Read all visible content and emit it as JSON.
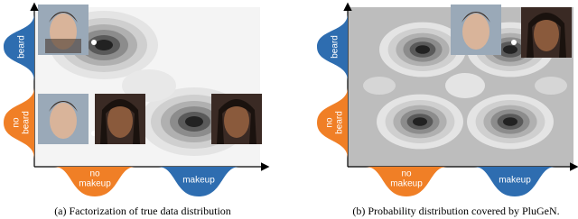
{
  "panels": [
    {
      "y_top": "beard",
      "y_bottom": [
        "no",
        "beard"
      ],
      "x_left": [
        "no",
        "makeup"
      ],
      "x_right": "makeup",
      "caption": "(a) Factorization of true data distribution"
    },
    {
      "y_top": "beard",
      "y_bottom": [
        "no",
        "beard"
      ],
      "x_left": [
        "no",
        "makeup"
      ],
      "x_right": "makeup",
      "caption": "(b) Probability distribution covered by PluGeN."
    }
  ]
}
